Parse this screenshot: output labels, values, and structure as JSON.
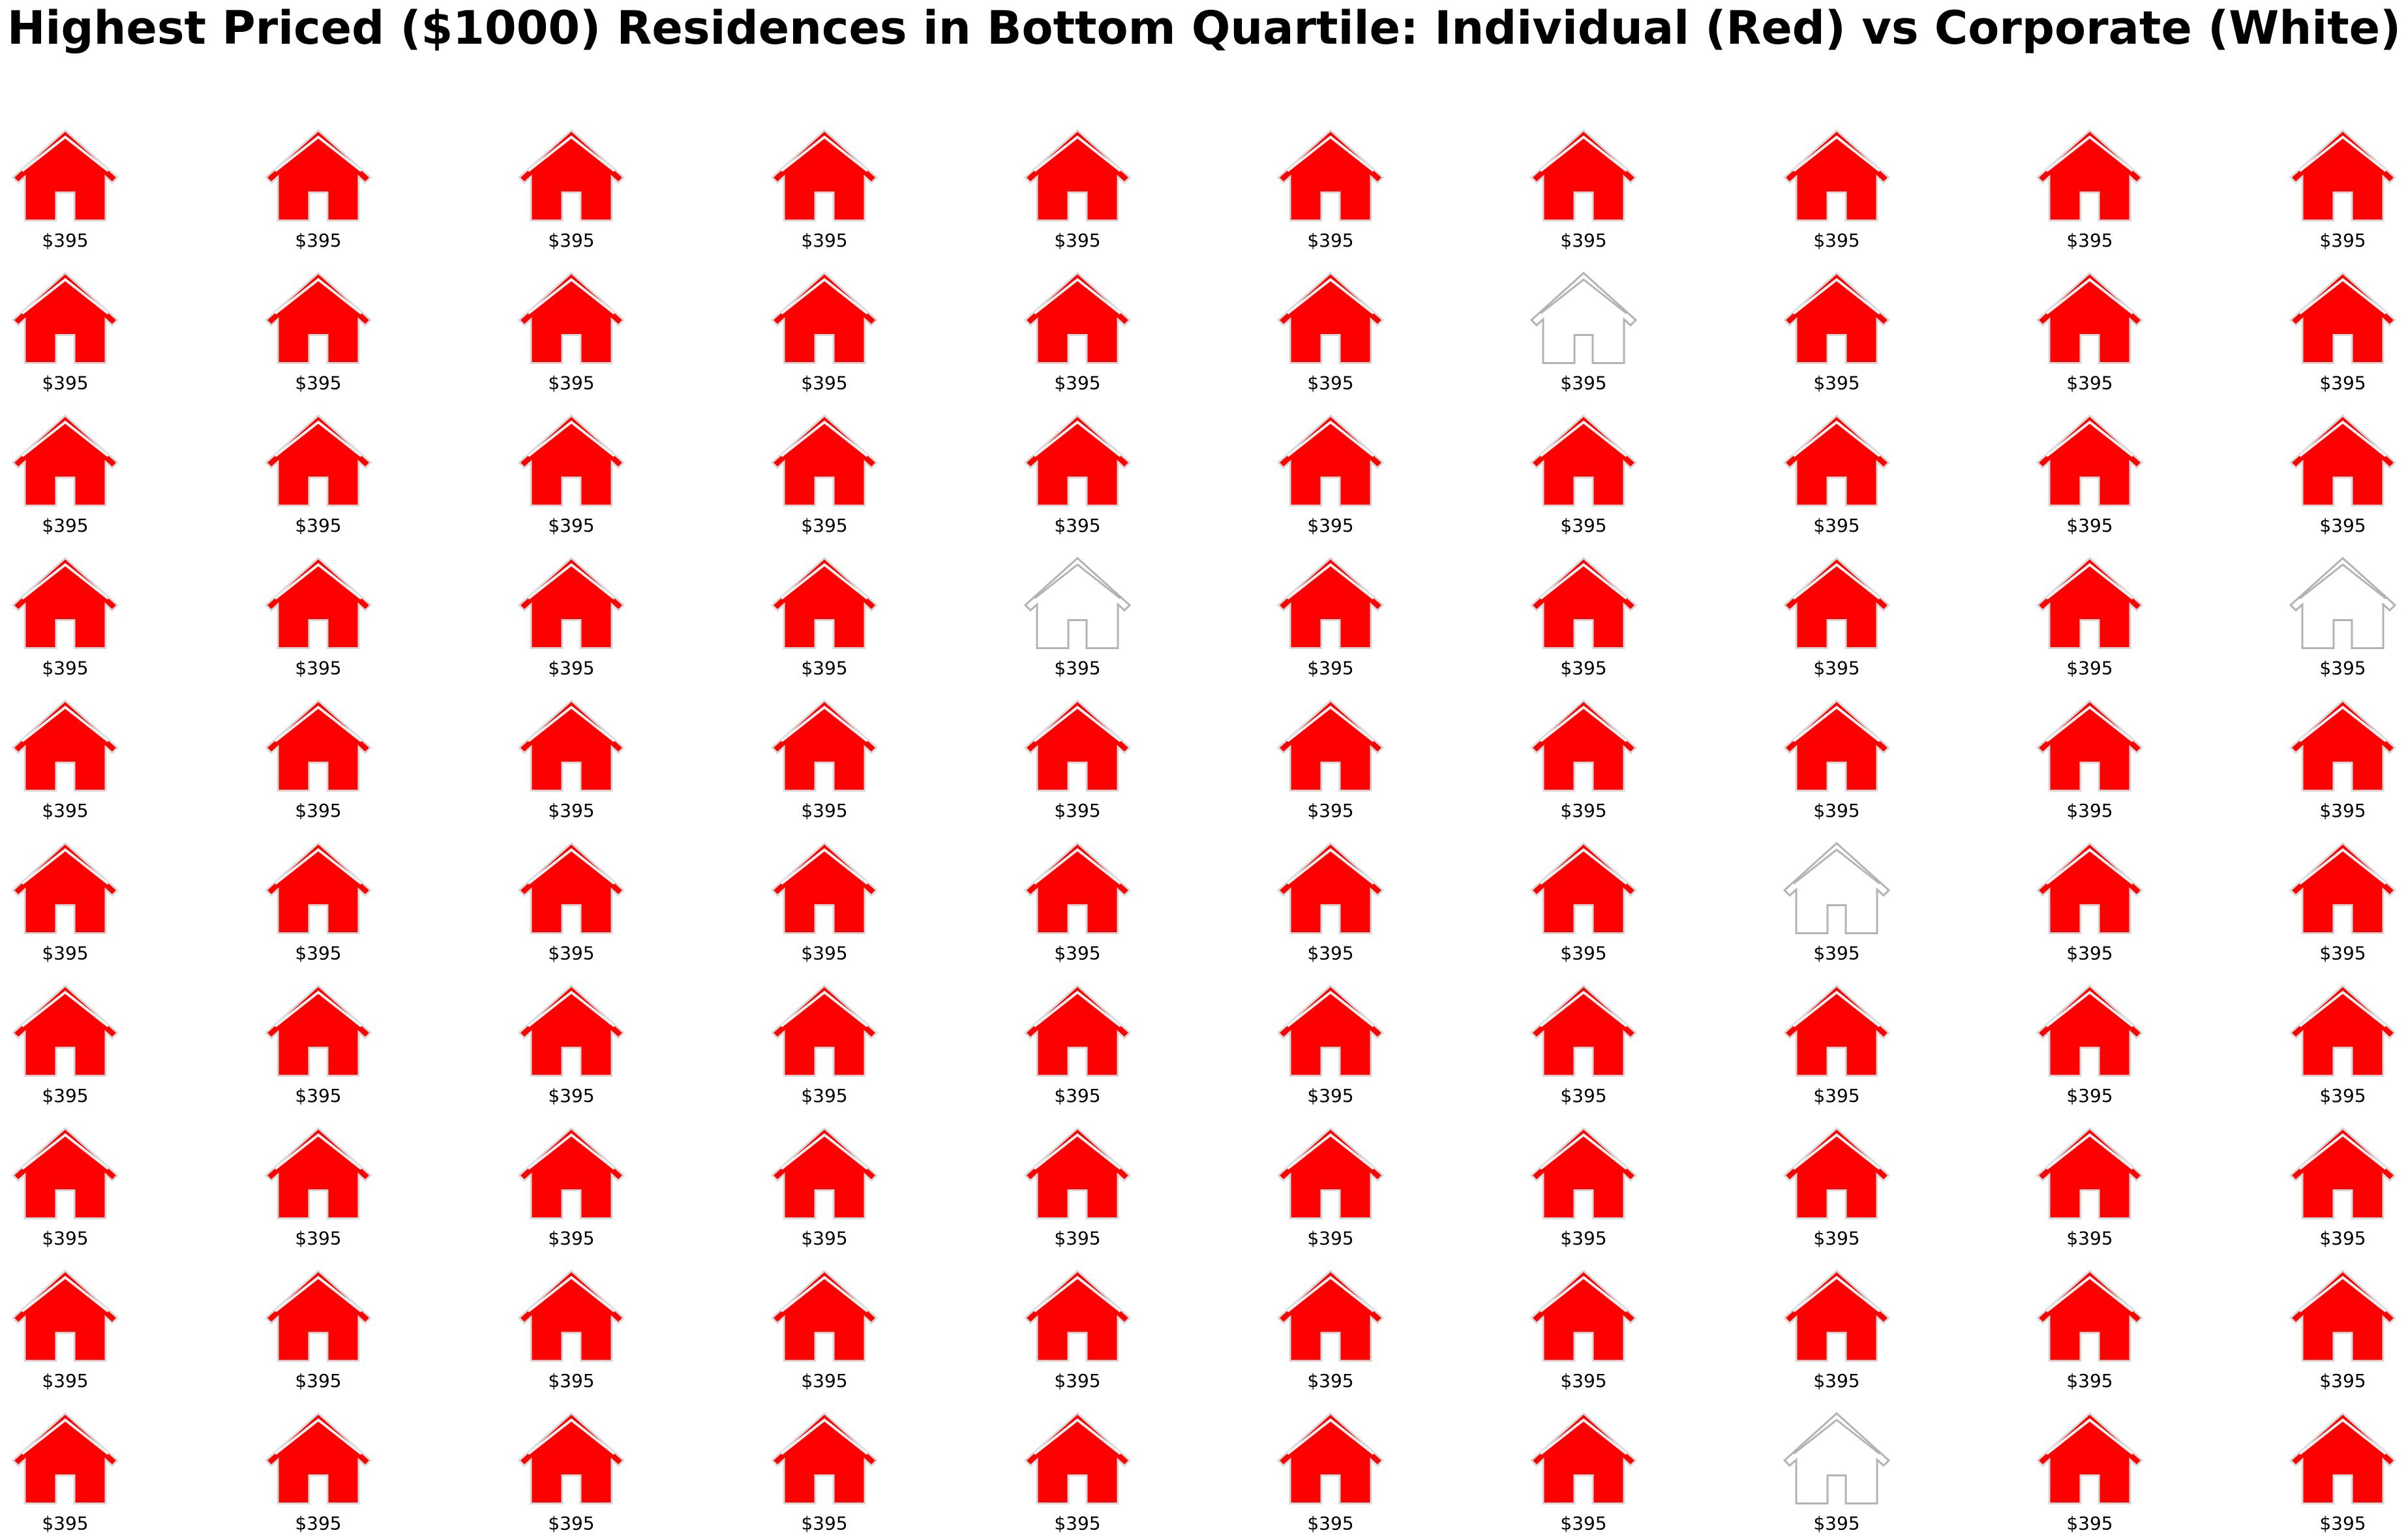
{
  "chart_data": {
    "type": "pictograph",
    "title": "Highest Priced ($1000) Residences in Bottom Quartile: Individual (Red) vs Corporate (White)",
    "rows": 10,
    "cols": 10,
    "colors": {
      "individual": "#ff0000",
      "individual_outline": "#d9d9d9",
      "corporate": "#ffffff",
      "corporate_outline": "#b3b3b3"
    },
    "value_label": "$395",
    "values_thousands": [
      395,
      395,
      395,
      395,
      395,
      395,
      395,
      395,
      395,
      395,
      395,
      395,
      395,
      395,
      395,
      395,
      395,
      395,
      395,
      395,
      395,
      395,
      395,
      395,
      395,
      395,
      395,
      395,
      395,
      395,
      395,
      395,
      395,
      395,
      395,
      395,
      395,
      395,
      395,
      395,
      395,
      395,
      395,
      395,
      395,
      395,
      395,
      395,
      395,
      395,
      395,
      395,
      395,
      395,
      395,
      395,
      395,
      395,
      395,
      395,
      395,
      395,
      395,
      395,
      395,
      395,
      395,
      395,
      395,
      395,
      395,
      395,
      395,
      395,
      395,
      395,
      395,
      395,
      395,
      395,
      395,
      395,
      395,
      395,
      395,
      395,
      395,
      395,
      395,
      395,
      395,
      395,
      395,
      395,
      395,
      395,
      395,
      395,
      395,
      395
    ],
    "owner_types": [
      [
        "Individual",
        "Individual",
        "Individual",
        "Individual",
        "Individual",
        "Individual",
        "Individual",
        "Individual",
        "Individual",
        "Individual"
      ],
      [
        "Individual",
        "Individual",
        "Individual",
        "Individual",
        "Individual",
        "Individual",
        "Corporate",
        "Individual",
        "Individual",
        "Individual"
      ],
      [
        "Individual",
        "Individual",
        "Individual",
        "Individual",
        "Individual",
        "Individual",
        "Individual",
        "Individual",
        "Individual",
        "Individual"
      ],
      [
        "Individual",
        "Individual",
        "Individual",
        "Individual",
        "Corporate",
        "Individual",
        "Individual",
        "Individual",
        "Individual",
        "Corporate"
      ],
      [
        "Individual",
        "Individual",
        "Individual",
        "Individual",
        "Individual",
        "Individual",
        "Individual",
        "Individual",
        "Individual",
        "Individual"
      ],
      [
        "Individual",
        "Individual",
        "Individual",
        "Individual",
        "Individual",
        "Individual",
        "Individual",
        "Corporate",
        "Individual",
        "Individual"
      ],
      [
        "Individual",
        "Individual",
        "Individual",
        "Individual",
        "Individual",
        "Individual",
        "Individual",
        "Individual",
        "Individual",
        "Individual"
      ],
      [
        "Individual",
        "Individual",
        "Individual",
        "Individual",
        "Individual",
        "Individual",
        "Individual",
        "Individual",
        "Individual",
        "Individual"
      ],
      [
        "Individual",
        "Individual",
        "Individual",
        "Individual",
        "Individual",
        "Individual",
        "Individual",
        "Individual",
        "Individual",
        "Individual"
      ],
      [
        "Individual",
        "Individual",
        "Individual",
        "Individual",
        "Individual",
        "Individual",
        "Individual",
        "Corporate",
        "Individual",
        "Individual"
      ]
    ]
  }
}
